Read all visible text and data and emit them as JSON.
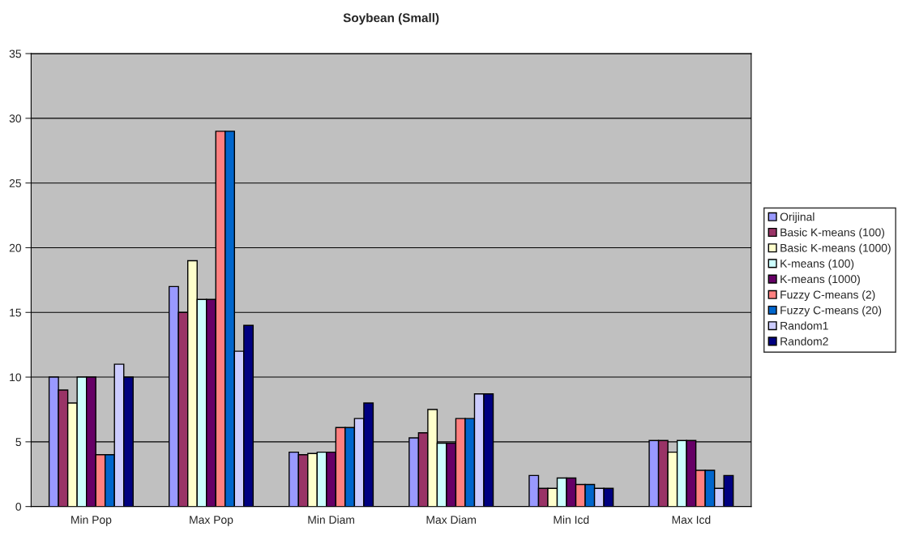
{
  "chart_data": {
    "type": "bar",
    "title": "Soybean (Small)",
    "categories": [
      "Min Pop",
      "Max Pop",
      "Min Diam",
      "Max Diam",
      "Min Icd",
      "Max Icd"
    ],
    "series": [
      {
        "name": "Orijinal",
        "color": "#9999ff",
        "values": [
          10,
          17,
          4.2,
          5.3,
          2.4,
          5.1
        ]
      },
      {
        "name": "Basic K-means (100)",
        "color": "#993366",
        "values": [
          9,
          15,
          4.0,
          5.7,
          1.4,
          5.1
        ]
      },
      {
        "name": "Basic K-means (1000)",
        "color": "#ffffcc",
        "values": [
          8,
          19,
          4.1,
          7.5,
          1.4,
          4.2
        ]
      },
      {
        "name": "K-means (100)",
        "color": "#ccffff",
        "values": [
          10,
          16,
          4.2,
          4.9,
          2.2,
          5.1
        ]
      },
      {
        "name": "K-means (1000)",
        "color": "#660066",
        "values": [
          10,
          16,
          4.2,
          4.9,
          2.2,
          5.1
        ]
      },
      {
        "name": "Fuzzy C-means (2)",
        "color": "#ff8080",
        "values": [
          4,
          29,
          6.1,
          6.8,
          1.7,
          2.8
        ]
      },
      {
        "name": "Fuzzy C-means (20)",
        "color": "#0066cc",
        "values": [
          4,
          29,
          6.1,
          6.8,
          1.7,
          2.8
        ]
      },
      {
        "name": "Random1",
        "color": "#ccccff",
        "values": [
          11,
          12,
          6.8,
          8.7,
          1.4,
          1.4
        ]
      },
      {
        "name": "Random2",
        "color": "#000080",
        "values": [
          10,
          14,
          8.0,
          8.7,
          1.4,
          2.4
        ]
      }
    ],
    "ylim": [
      0,
      35
    ],
    "yticks": [
      0,
      5,
      10,
      15,
      20,
      25,
      30,
      35
    ],
    "grid": "y",
    "legend": "right"
  }
}
